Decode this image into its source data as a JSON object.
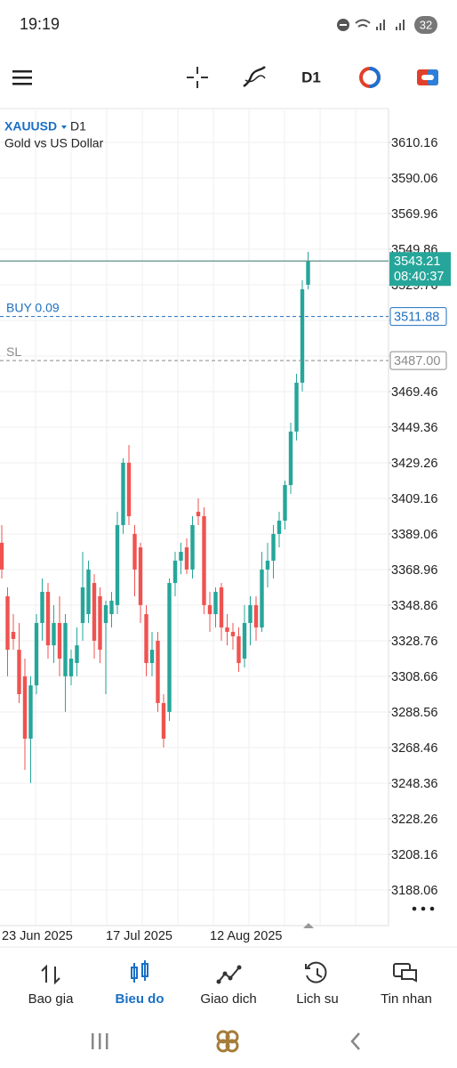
{
  "status_bar": {
    "time": "19:19",
    "battery": "32"
  },
  "chart_data": {
    "type": "candlestick",
    "symbol": "XAUUSD",
    "timeframe": "D1",
    "subtitle": "Gold vs US Dollar",
    "categories": [
      "23 Jun 2025",
      null,
      null,
      null,
      null,
      null,
      null,
      null,
      null,
      null,
      null,
      null,
      null,
      null,
      null,
      null,
      null,
      null,
      "17 Jul 2025",
      null,
      null,
      null,
      null,
      null,
      null,
      null,
      null,
      null,
      null,
      null,
      null,
      null,
      null,
      null,
      null,
      null,
      "12 Aug 2025",
      null,
      null,
      null,
      null,
      null,
      null,
      null,
      null,
      null,
      null,
      null,
      null,
      null,
      null,
      null,
      null,
      null
    ],
    "open": [
      3384.1,
      3353.9,
      3333.8,
      3323.7,
      3308.7,
      3273.5,
      3303.6,
      3338.8,
      3356.4,
      3326.2,
      3338.8,
      3308.7,
      3308.7,
      3316.2,
      3338.8,
      3343.8,
      3361.4,
      3353.9,
      3338.8,
      3343.8,
      3348.9,
      3394.1,
      3429.3,
      3389.1,
      3381.5,
      3343.8,
      3316.2,
      3328.8,
      3293.6,
      3288.6,
      3361.4,
      3374.0,
      3381.5,
      3369.0,
      3401.6,
      3399.1,
      3348.9,
      3343.8,
      3358.9,
      3336.3,
      3333.8,
      3331.3,
      3318.7,
      3338.8,
      3348.9,
      3336.3,
      3369.0,
      3374.0,
      3389.1,
      3396.6,
      3416.7,
      3446.9,
      3474.5,
      3529.8
    ],
    "high": [
      3394.1,
      3358.9,
      3343.8,
      3338.8,
      3318.7,
      3308.7,
      3343.8,
      3363.9,
      3361.4,
      3348.9,
      3353.9,
      3343.8,
      3323.7,
      3336.3,
      3379.0,
      3374.0,
      3366.4,
      3358.9,
      3351.4,
      3356.4,
      3401.6,
      3431.8,
      3439.3,
      3394.1,
      3384.1,
      3348.9,
      3333.8,
      3333.8,
      3298.6,
      3363.9,
      3379.0,
      3384.1,
      3386.6,
      3399.1,
      3409.2,
      3404.1,
      3356.4,
      3358.9,
      3361.4,
      3343.8,
      3338.8,
      3336.3,
      3348.9,
      3353.9,
      3353.9,
      3379.0,
      3384.1,
      3394.1,
      3401.6,
      3419.2,
      3451.9,
      3479.5,
      3532.3,
      3548.4
    ],
    "low": [
      3363.9,
      3308.7,
      3323.7,
      3293.6,
      3255.9,
      3248.4,
      3298.6,
      3328.8,
      3318.7,
      3316.2,
      3308.7,
      3288.6,
      3303.6,
      3308.7,
      3328.8,
      3338.8,
      3318.7,
      3316.2,
      3298.6,
      3336.3,
      3343.8,
      3389.1,
      3394.1,
      3353.9,
      3338.8,
      3308.7,
      3308.7,
      3288.6,
      3268.5,
      3283.5,
      3353.9,
      3366.4,
      3366.4,
      3363.9,
      3394.1,
      3343.8,
      3333.8,
      3336.3,
      3328.8,
      3326.2,
      3323.7,
      3311.2,
      3313.7,
      3326.2,
      3328.8,
      3333.8,
      3358.9,
      3363.9,
      3381.5,
      3391.6,
      3411.7,
      3441.9,
      3469.5,
      3527.2
    ],
    "close": [
      3369.0,
      3323.7,
      3329.8,
      3298.6,
      3273.5,
      3303.6,
      3338.8,
      3356.4,
      3326.2,
      3338.8,
      3318.7,
      3338.8,
      3318.7,
      3326.2,
      3358.9,
      3369.0,
      3328.8,
      3323.7,
      3348.9,
      3351.4,
      3394.1,
      3429.3,
      3399.1,
      3369.0,
      3348.9,
      3316.2,
      3323.7,
      3293.6,
      3273.5,
      3361.4,
      3374.0,
      3379.0,
      3369.0,
      3394.1,
      3399.1,
      3348.9,
      3343.8,
      3356.4,
      3336.3,
      3333.8,
      3331.3,
      3316.2,
      3338.8,
      3348.9,
      3336.3,
      3369.0,
      3374.0,
      3389.1,
      3396.6,
      3416.7,
      3446.9,
      3474.5,
      3527.2,
      3543.21
    ],
    "up_color": "#26a69a",
    "down_color": "#ef5350",
    "ylim": [
      3167.95,
      3629.26
    ],
    "yticks": [
      3188.06,
      3208.16,
      3228.26,
      3248.36,
      3268.46,
      3288.56,
      3308.66,
      3328.76,
      3348.86,
      3368.96,
      3389.06,
      3409.16,
      3429.26,
      3449.36,
      3469.46,
      3489.56,
      3509.66,
      3529.76,
      3549.86,
      3569.96,
      3590.06,
      3610.16
    ],
    "grid": true,
    "last_price": 3543.21,
    "last_time": "08:40:37",
    "last_color": "#26a69a",
    "levels": {
      "names": [
        "BUY 0.09",
        "SL"
      ],
      "values": [
        3511.88,
        3487
      ],
      "value_labels": [
        "3511.88",
        "3487.00"
      ],
      "colors": [
        "#1f6fbf",
        "#8a8a8a"
      ]
    }
  },
  "bottom_nav": {
    "items": [
      "Bao gia",
      "Bieu do",
      "Giao dich",
      "Lich su",
      "Tin nhan"
    ],
    "active": 1,
    "active_color": "#1a6fc4"
  }
}
